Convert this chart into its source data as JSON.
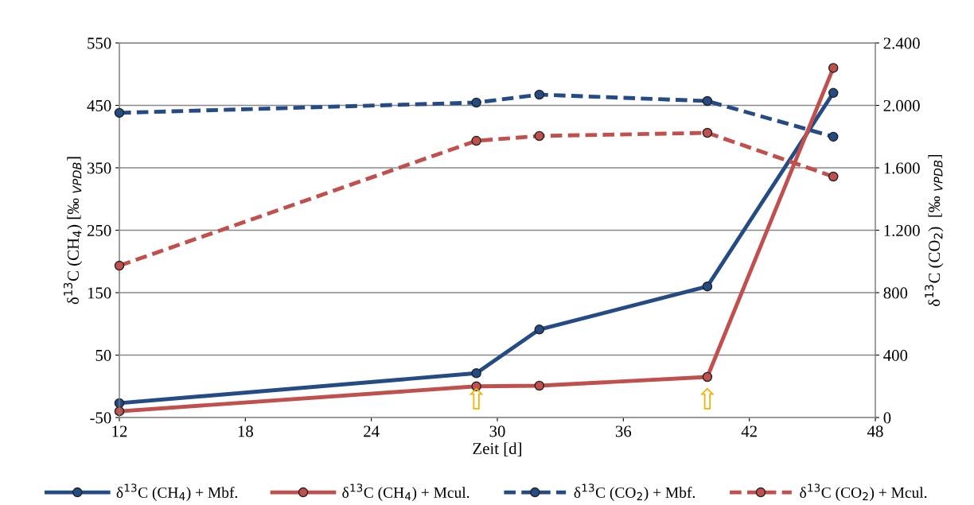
{
  "chart_data": {
    "type": "line",
    "xlabel": "Zeit [d]",
    "ylabel": "δ$^{13}$C (CH$_{4}$) [‰ $_{VPDB}$]",
    "y2label": "δ$^{13}$C (CO$_{2}$)  [‰ $_{VPDB}$]",
    "x": [
      12,
      29,
      32,
      40,
      46
    ],
    "xlim": [
      12,
      48
    ],
    "xticks": [
      12,
      18,
      24,
      30,
      36,
      42,
      48
    ],
    "ylim": [
      -50,
      550
    ],
    "yticks": [
      -50,
      50,
      150,
      250,
      350,
      450,
      550
    ],
    "y2lim": [
      0,
      2400
    ],
    "y2ticks": [
      0,
      {
        "value": 400,
        "label": "400"
      },
      {
        "value": 800,
        "label": "800"
      },
      {
        "value": 1200,
        "label": "1.200"
      },
      {
        "value": 1600,
        "label": "1.600"
      },
      {
        "value": 2000,
        "label": "2.000"
      },
      {
        "value": 2400,
        "label": "2.400"
      }
    ],
    "grid": "y",
    "legend": "bottom",
    "marker": "circle",
    "series": [
      {
        "name": "δ$^{13}$C (CH$_{4}$) + Mbf.",
        "color": "#254b85",
        "values": [
          -27,
          21,
          91,
          160,
          470
        ],
        "line_style": "solid"
      },
      {
        "name": "δ$^{13}$C (CH$_{4}$) + Mcul.",
        "color": "#c0504d",
        "values": [
          -40,
          0,
          1,
          15,
          510
        ],
        "line_style": "solid"
      },
      {
        "name": "δ$^{13}$C (CO$_{2}$) + Mbf.",
        "color": "#254b85",
        "values": [
          1952,
          2018,
          2069,
          2028,
          1799
        ],
        "axis": "y2",
        "line_style": "dashed"
      },
      {
        "name": "δ$^{13}$C (CO$_{2}$) + Mcul.",
        "color": "#c0504d",
        "values": [
          973,
          1773,
          1804,
          1824,
          1544
        ],
        "axis": "y2",
        "line_style": "dashed"
      }
    ],
    "annotations": [
      "⇧",
      "⇧"
    ]
  }
}
